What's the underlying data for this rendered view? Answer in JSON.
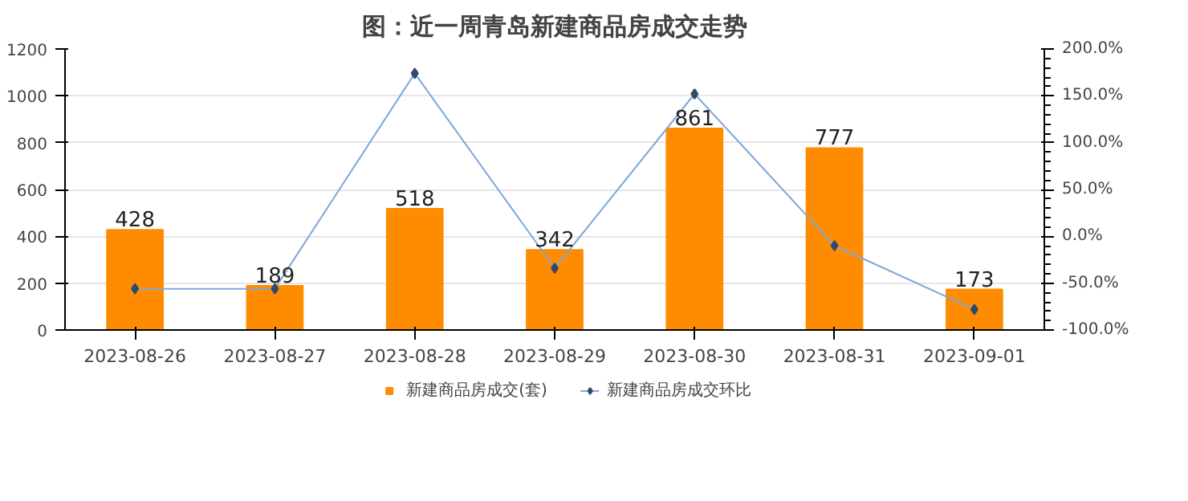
{
  "chart_data": {
    "type": "bar",
    "title": "图：近一周青岛新建商品房成交走势",
    "categories": [
      "2023-08-26",
      "2023-08-27",
      "2023-08-28",
      "2023-08-29",
      "2023-08-30",
      "2023-08-31",
      "2023-09-01"
    ],
    "series": [
      {
        "name": "新建商品房成交(套)",
        "color": "#ff8c00",
        "values": [
          428,
          189,
          518,
          342,
          861,
          777,
          173
        ],
        "value_labels": [
          "428",
          "189",
          "518",
          "342",
          "861",
          "777",
          "173"
        ]
      },
      {
        "name": "新建商品房成交环比",
        "color": "#7da7d9",
        "type": "line",
        "axis": "y2",
        "marker": "diamond",
        "values": [
          -56,
          -56,
          174,
          -34,
          152,
          -10,
          -78
        ]
      }
    ],
    "grid": "y",
    "legend": "bottom",
    "ylim": [
      0,
      1200
    ],
    "yticks": [
      0,
      200,
      400,
      600,
      800,
      1000,
      1200
    ],
    "y2lim": [
      -100,
      200
    ],
    "y2ticks": [
      {
        "value": -100,
        "label": "-100.0%"
      },
      {
        "value": -50,
        "label": "-50.0%"
      },
      {
        "value": 0,
        "label": "0.0%"
      },
      {
        "value": 50,
        "label": "50.0%"
      },
      {
        "value": 100,
        "label": "100.0%"
      },
      {
        "value": 150,
        "label": "150.0%"
      },
      {
        "value": 200,
        "label": "200.0%"
      }
    ]
  }
}
